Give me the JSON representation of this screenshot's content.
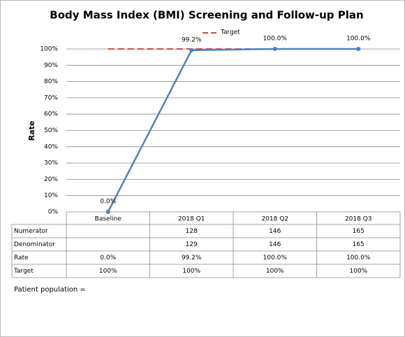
{
  "chart_data": {
    "type": "line",
    "title": "Body Mass Index (BMI) Screening and Follow-up Plan",
    "y_label": "Rate",
    "categories": [
      "Baseline",
      "2018 Q1",
      "2018 Q2",
      "2018 Q3"
    ],
    "ylim": [
      0,
      100
    ],
    "yticks": [
      {
        "value": 0,
        "label": "0%"
      },
      {
        "value": 10,
        "label": "10%"
      },
      {
        "value": 20,
        "label": "20%"
      },
      {
        "value": 30,
        "label": "30%"
      },
      {
        "value": 40,
        "label": "40%"
      },
      {
        "value": 50,
        "label": "50%"
      },
      {
        "value": 60,
        "label": "60%"
      },
      {
        "value": 70,
        "label": "70%"
      },
      {
        "value": 80,
        "label": "80%"
      },
      {
        "value": 90,
        "label": "90%"
      },
      {
        "value": 100,
        "label": "100%"
      }
    ],
    "grid": true,
    "series": [
      {
        "name": "Rate",
        "color": "#4f81bd",
        "values": [
          0,
          99.2,
          100,
          100
        ],
        "value_labels": [
          "0.0%",
          "99.2%",
          "100.0%",
          "100.0%"
        ],
        "dashed": false,
        "in_legend": false,
        "show_labels": true
      },
      {
        "name": "Target",
        "color": "#c0504d",
        "values": [
          100,
          100,
          100,
          100
        ],
        "value_labels": [
          "100%",
          "100%",
          "100%",
          "100%"
        ],
        "dashed": true,
        "in_legend": true,
        "show_labels": false
      }
    ],
    "legend_position": "top",
    "table": {
      "rows": [
        {
          "name": "Numerator",
          "values": [
            null,
            128,
            146,
            165
          ]
        },
        {
          "name": "Denominator",
          "values": [
            null,
            129,
            146,
            165
          ]
        }
      ]
    },
    "footnote": "Patient population ="
  }
}
